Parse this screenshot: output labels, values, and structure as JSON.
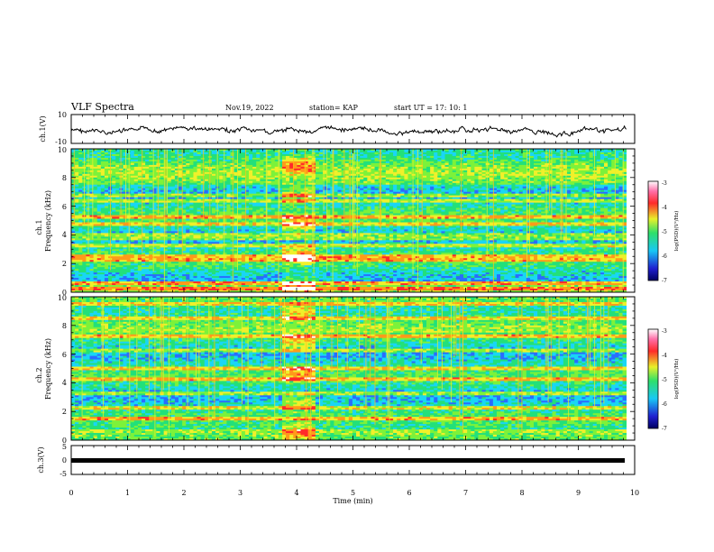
{
  "header": {
    "title": "VLF Spectra",
    "date": "Nov.19, 2022",
    "station": "station= KAP",
    "start": "start UT = 17: 10: 1"
  },
  "chart_data": [
    {
      "type": "line",
      "ylabel": "ch.1(V)",
      "ylim": [
        -10,
        10
      ],
      "yticks": [
        "10",
        "-10"
      ],
      "xlim": [
        0,
        10
      ]
    },
    {
      "type": "heatmap",
      "panel_label": "ch.1",
      "ylabel": "Frequency (kHz)",
      "ylim": [
        0,
        10
      ],
      "yticks": [
        "0",
        "2",
        "4",
        "6",
        "8",
        "10"
      ],
      "xlim": [
        0,
        10
      ],
      "colorbar": {
        "label": "log(PSD)(V²/Hz)",
        "ticks": [
          "-3",
          "-4",
          "-5",
          "-6",
          "-7"
        ],
        "range": [
          -7,
          -3
        ]
      },
      "emission_bands_khz": [
        0.3,
        0.6,
        2.2,
        2.5,
        3.3,
        3.8,
        4.0,
        4.8,
        5.2,
        6.4,
        6.8
      ],
      "burst_interval_min": [
        3.75,
        4.35
      ]
    },
    {
      "type": "heatmap",
      "panel_label": "ch.2",
      "ylabel": "Frequency (kHz)",
      "ylim": [
        0,
        10
      ],
      "yticks": [
        "0",
        "2",
        "4",
        "6",
        "8",
        "10"
      ],
      "xlim": [
        0,
        10
      ],
      "colorbar": {
        "label": "log(PSD)(V²/Hz)",
        "ticks": [
          "-3",
          "-4",
          "-5",
          "-6",
          "-7"
        ],
        "range": [
          -7,
          -3
        ]
      },
      "emission_bands_khz": [
        1.5,
        2.2,
        3.3,
        4.2,
        5.0,
        6.2,
        7.2,
        8.5,
        9.5
      ],
      "burst_interval_min": [
        3.75,
        4.35
      ]
    },
    {
      "type": "line",
      "ylabel": "ch.3(V)",
      "ylim": [
        -5,
        5
      ],
      "yticks": [
        "5",
        "0",
        "-5"
      ],
      "xlim": [
        0,
        10
      ],
      "xlabel": "Time (min)",
      "xticks": [
        "0",
        "1",
        "2",
        "3",
        "4",
        "5",
        "6",
        "7",
        "8",
        "9",
        "10"
      ]
    }
  ],
  "colors": {
    "axis": "#000000",
    "trace": "#000000",
    "colormap": [
      "#1f1fd0",
      "#2a6cff",
      "#19d6f5",
      "#23e07a",
      "#7cf23a",
      "#f0f02a",
      "#ff9a1a",
      "#ff2a2a",
      "#ffffff"
    ]
  }
}
